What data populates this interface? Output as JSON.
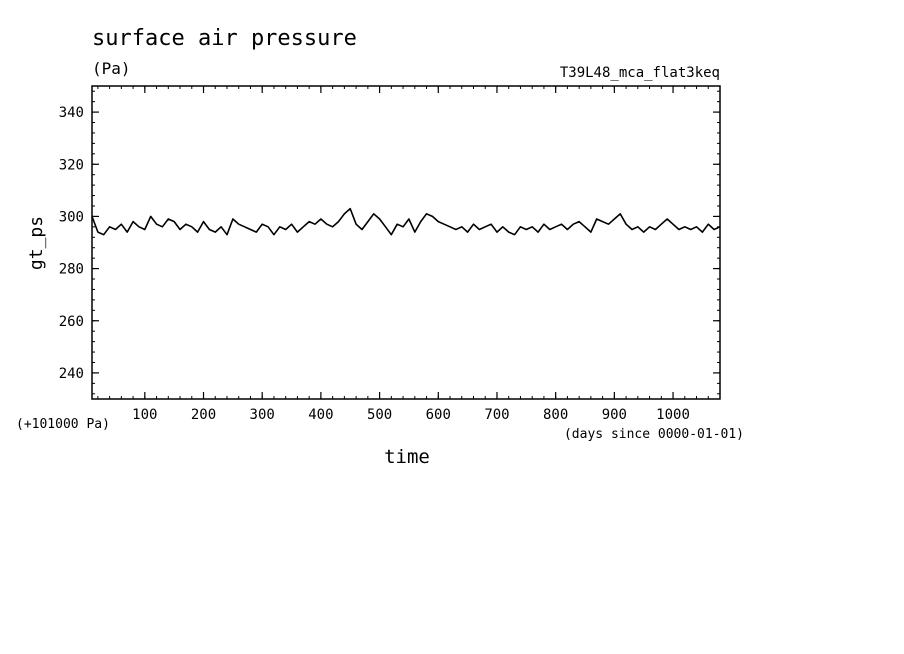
{
  "chart_data": {
    "type": "line",
    "title": "surface air pressure",
    "units": "(Pa)",
    "experiment": "T39L48_mca_flat3keq",
    "ylabel": "gt_ps",
    "xlabel": "time",
    "y_offset_label": "(+101000 Pa)",
    "x_units_label": "(days since 0000-01-01)",
    "xlim": [
      10,
      1080
    ],
    "ylim": [
      230,
      350
    ],
    "x_major_ticks": [
      100,
      200,
      300,
      400,
      500,
      600,
      700,
      800,
      900,
      1000
    ],
    "x_minor_step": 20,
    "y_major_ticks": [
      240,
      260,
      280,
      300,
      320,
      340
    ],
    "y_minor_step": 4,
    "grid": false,
    "series": [
      {
        "color": "#000000",
        "x": [
          10,
          20,
          30,
          40,
          50,
          60,
          70,
          80,
          90,
          100,
          110,
          120,
          130,
          140,
          150,
          160,
          170,
          180,
          190,
          200,
          210,
          220,
          230,
          240,
          250,
          260,
          270,
          280,
          290,
          300,
          310,
          320,
          330,
          340,
          350,
          360,
          370,
          380,
          390,
          400,
          410,
          420,
          430,
          440,
          450,
          460,
          470,
          480,
          490,
          500,
          510,
          520,
          530,
          540,
          550,
          560,
          570,
          580,
          590,
          600,
          610,
          620,
          630,
          640,
          650,
          660,
          670,
          680,
          690,
          700,
          710,
          720,
          730,
          740,
          750,
          760,
          770,
          780,
          790,
          800,
          810,
          820,
          830,
          840,
          850,
          860,
          870,
          880,
          890,
          900,
          910,
          920,
          930,
          940,
          950,
          960,
          970,
          980,
          990,
          1000,
          1010,
          1020,
          1030,
          1040,
          1050,
          1060,
          1070,
          1080
        ],
        "y": [
          300,
          294,
          293,
          296,
          295,
          297,
          294,
          298,
          296,
          295,
          300,
          297,
          296,
          299,
          298,
          295,
          297,
          296,
          294,
          298,
          295,
          294,
          296,
          293,
          299,
          297,
          296,
          295,
          294,
          297,
          296,
          293,
          296,
          295,
          297,
          294,
          296,
          298,
          297,
          299,
          297,
          296,
          298,
          301,
          303,
          297,
          295,
          298,
          301,
          299,
          296,
          293,
          297,
          296,
          299,
          294,
          298,
          301,
          300,
          298,
          297,
          296,
          295,
          296,
          294,
          297,
          295,
          296,
          297,
          294,
          296,
          294,
          293,
          296,
          295,
          296,
          294,
          297,
          295,
          296,
          297,
          295,
          297,
          298,
          296,
          294,
          299,
          298,
          297,
          299,
          301,
          297,
          295,
          296,
          294,
          296,
          295,
          297,
          299,
          297,
          295,
          296,
          295,
          296,
          294,
          297,
          295,
          296
        ]
      }
    ]
  }
}
